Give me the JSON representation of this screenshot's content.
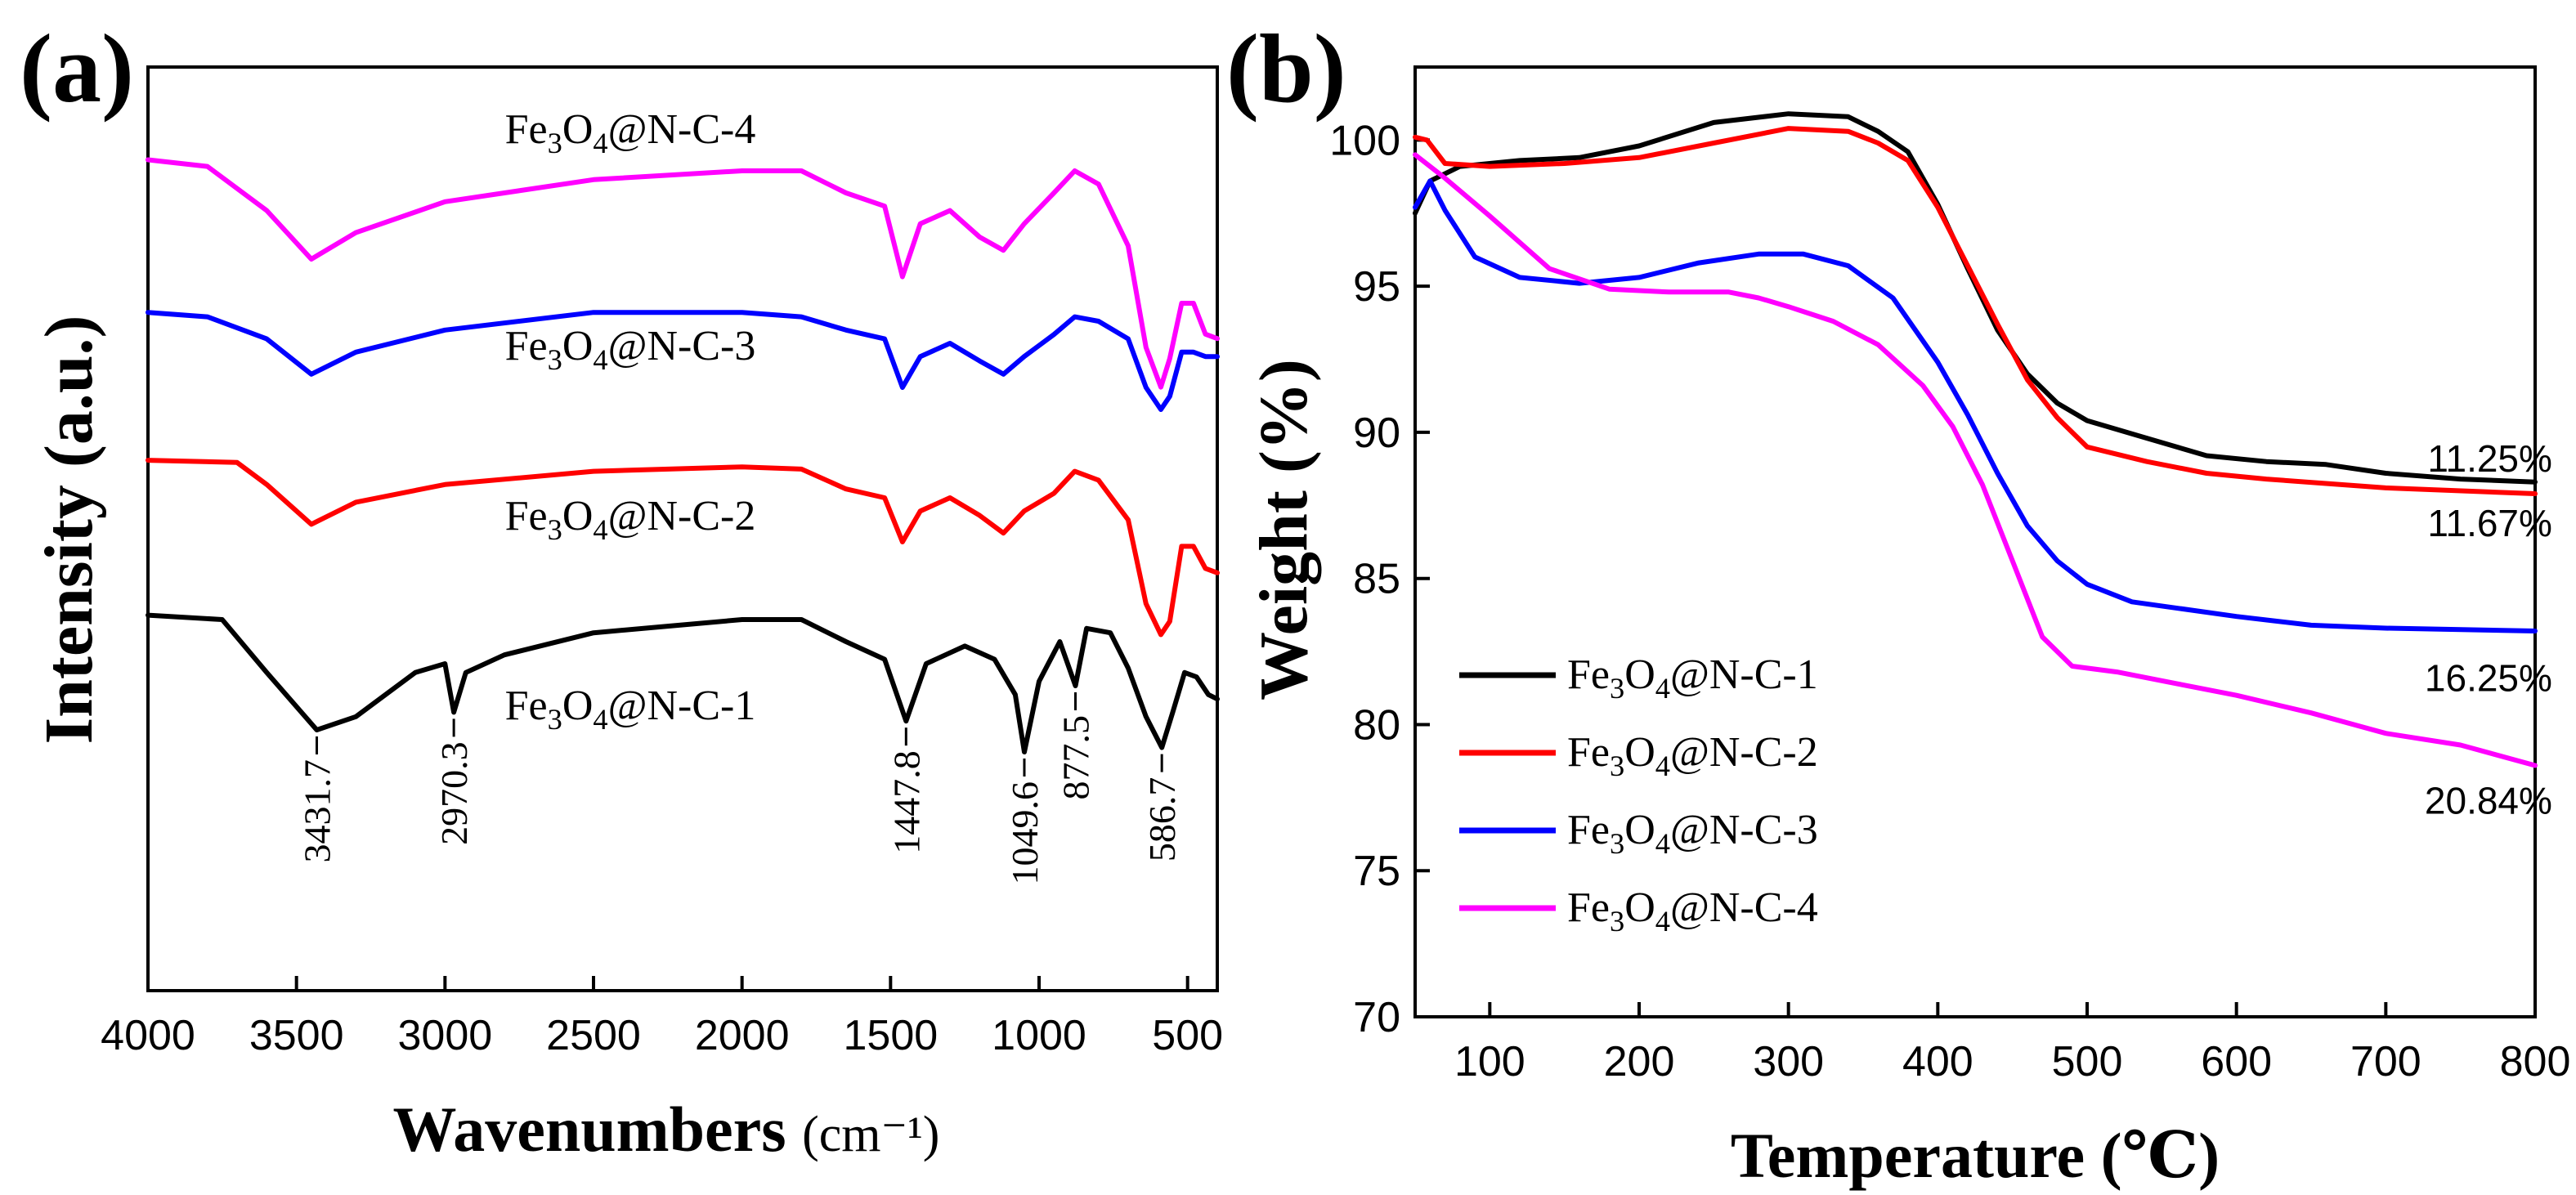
{
  "chart_data": [
    {
      "panel_label": "(a)",
      "type": "line",
      "title": "",
      "xlabel": "Wavenumbers",
      "xlabel_unit": "(cm⁻¹)",
      "ylabel": "Intensity (a.u.)",
      "xlim": [
        4000,
        400
      ],
      "xticks": [
        4000,
        3500,
        3000,
        2500,
        2000,
        1500,
        1000,
        500
      ],
      "offset_units": "stacked traces, arbitrary intensity",
      "series": [
        {
          "name": "Fe3O4@N-C-4",
          "label_parts": [
            "Fe",
            "3",
            "O",
            "4",
            "@N-C-4"
          ],
          "color": "#ff00ff",
          "offset": 3,
          "points": [
            [
              4000,
              0.95
            ],
            [
              3800,
              0.92
            ],
            [
              3600,
              0.72
            ],
            [
              3450,
              0.5
            ],
            [
              3300,
              0.62
            ],
            [
              3000,
              0.76
            ],
            [
              2500,
              0.86
            ],
            [
              2000,
              0.9
            ],
            [
              1800,
              0.9
            ],
            [
              1650,
              0.8
            ],
            [
              1520,
              0.74
            ],
            [
              1460,
              0.42
            ],
            [
              1400,
              0.66
            ],
            [
              1300,
              0.72
            ],
            [
              1200,
              0.6
            ],
            [
              1120,
              0.54
            ],
            [
              1050,
              0.66
            ],
            [
              950,
              0.8
            ],
            [
              880,
              0.9
            ],
            [
              800,
              0.84
            ],
            [
              700,
              0.56
            ],
            [
              640,
              0.1
            ],
            [
              590,
              -0.08
            ],
            [
              560,
              0.05
            ],
            [
              520,
              0.3
            ],
            [
              480,
              0.3
            ],
            [
              440,
              0.16
            ],
            [
              400,
              0.14
            ]
          ]
        },
        {
          "name": "Fe3O4@N-C-3",
          "label_parts": [
            "Fe",
            "3",
            "O",
            "4",
            "@N-C-3"
          ],
          "color": "#0000ff",
          "offset": 2,
          "points": [
            [
              4000,
              0.94
            ],
            [
              3800,
              0.92
            ],
            [
              3600,
              0.82
            ],
            [
              3450,
              0.66
            ],
            [
              3300,
              0.76
            ],
            [
              3000,
              0.86
            ],
            [
              2500,
              0.94
            ],
            [
              2000,
              0.94
            ],
            [
              1800,
              0.92
            ],
            [
              1650,
              0.86
            ],
            [
              1520,
              0.82
            ],
            [
              1460,
              0.6
            ],
            [
              1400,
              0.74
            ],
            [
              1300,
              0.8
            ],
            [
              1200,
              0.72
            ],
            [
              1120,
              0.66
            ],
            [
              1050,
              0.74
            ],
            [
              950,
              0.84
            ],
            [
              880,
              0.92
            ],
            [
              800,
              0.9
            ],
            [
              700,
              0.82
            ],
            [
              640,
              0.6
            ],
            [
              590,
              0.5
            ],
            [
              560,
              0.56
            ],
            [
              520,
              0.76
            ],
            [
              480,
              0.76
            ],
            [
              440,
              0.74
            ],
            [
              400,
              0.74
            ]
          ]
        },
        {
          "name": "Fe3O4@N-C-2",
          "label_parts": [
            "Fe",
            "3",
            "O",
            "4",
            "@N-C-2"
          ],
          "color": "#ff0000",
          "offset": 1,
          "points": [
            [
              4000,
              0.97
            ],
            [
              3700,
              0.96
            ],
            [
              3600,
              0.86
            ],
            [
              3450,
              0.68
            ],
            [
              3300,
              0.78
            ],
            [
              3000,
              0.86
            ],
            [
              2500,
              0.92
            ],
            [
              2000,
              0.94
            ],
            [
              1800,
              0.93
            ],
            [
              1650,
              0.84
            ],
            [
              1520,
              0.8
            ],
            [
              1460,
              0.6
            ],
            [
              1400,
              0.74
            ],
            [
              1300,
              0.8
            ],
            [
              1200,
              0.72
            ],
            [
              1120,
              0.64
            ],
            [
              1050,
              0.74
            ],
            [
              950,
              0.82
            ],
            [
              880,
              0.92
            ],
            [
              800,
              0.88
            ],
            [
              700,
              0.7
            ],
            [
              640,
              0.32
            ],
            [
              590,
              0.18
            ],
            [
              560,
              0.24
            ],
            [
              520,
              0.58
            ],
            [
              480,
              0.58
            ],
            [
              440,
              0.48
            ],
            [
              400,
              0.46
            ]
          ]
        },
        {
          "name": "Fe3O4@N-C-1",
          "label_parts": [
            "Fe",
            "3",
            "O",
            "4",
            "@N-C-1"
          ],
          "color": "#000000",
          "offset": 0,
          "points": [
            [
              4000,
              0.92
            ],
            [
              3750,
              0.9
            ],
            [
              3600,
              0.66
            ],
            [
              3431.7,
              0.4
            ],
            [
              3300,
              0.46
            ],
            [
              3100,
              0.66
            ],
            [
              3000,
              0.7
            ],
            [
              2970.3,
              0.48
            ],
            [
              2930,
              0.66
            ],
            [
              2800,
              0.74
            ],
            [
              2500,
              0.84
            ],
            [
              2000,
              0.9
            ],
            [
              1800,
              0.9
            ],
            [
              1650,
              0.8
            ],
            [
              1520,
              0.72
            ],
            [
              1447.8,
              0.44
            ],
            [
              1380,
              0.7
            ],
            [
              1250,
              0.78
            ],
            [
              1150,
              0.72
            ],
            [
              1080,
              0.56
            ],
            [
              1049.6,
              0.3
            ],
            [
              1000,
              0.62
            ],
            [
              930,
              0.8
            ],
            [
              877.5,
              0.6
            ],
            [
              840,
              0.86
            ],
            [
              760,
              0.84
            ],
            [
              700,
              0.68
            ],
            [
              640,
              0.46
            ],
            [
              586.7,
              0.32
            ],
            [
              550,
              0.48
            ],
            [
              510,
              0.66
            ],
            [
              470,
              0.64
            ],
            [
              430,
              0.56
            ],
            [
              400,
              0.54
            ]
          ]
        }
      ],
      "annotations": [
        "3431.7",
        "2970.3",
        "1447.8",
        "1049.6",
        "877.5",
        "586.7"
      ],
      "annotation_positions": [
        3431.7,
        2970.3,
        1447.8,
        1049.6,
        877.5,
        586.7
      ]
    },
    {
      "panel_label": "(b)",
      "type": "line",
      "title": "",
      "xlabel": "Temperature (℃)",
      "ylabel": "Weight (%)",
      "xlim": [
        50,
        800
      ],
      "ylim": [
        70,
        102.5
      ],
      "xticks": [
        100,
        200,
        300,
        400,
        500,
        600,
        700,
        800
      ],
      "yticks": [
        70,
        75,
        80,
        85,
        90,
        95,
        100
      ],
      "legend_position": "bottom-left",
      "series": [
        {
          "name": "Fe3O4@N-C-1",
          "label_parts": [
            "Fe",
            "3",
            "O",
            "4",
            "@N-C-1"
          ],
          "color": "#000000",
          "points": [
            [
              50,
              97.5
            ],
            [
              60,
              98.6
            ],
            [
              80,
              99.1
            ],
            [
              120,
              99.3
            ],
            [
              160,
              99.4
            ],
            [
              200,
              99.8
            ],
            [
              250,
              100.6
            ],
            [
              300,
              100.9
            ],
            [
              340,
              100.8
            ],
            [
              360,
              100.3
            ],
            [
              380,
              99.6
            ],
            [
              400,
              97.8
            ],
            [
              420,
              95.6
            ],
            [
              440,
              93.5
            ],
            [
              460,
              92.0
            ],
            [
              480,
              91.0
            ],
            [
              500,
              90.4
            ],
            [
              540,
              89.8
            ],
            [
              580,
              89.2
            ],
            [
              620,
              89.0
            ],
            [
              660,
              88.9
            ],
            [
              700,
              88.6
            ],
            [
              750,
              88.4
            ],
            [
              800,
              88.3
            ]
          ]
        },
        {
          "name": "Fe3O4@N-C-2",
          "label_parts": [
            "Fe",
            "3",
            "O",
            "4",
            "@N-C-2"
          ],
          "color": "#ff0000",
          "points": [
            [
              50,
              100.1
            ],
            [
              58,
              100.0
            ],
            [
              70,
              99.2
            ],
            [
              100,
              99.1
            ],
            [
              150,
              99.2
            ],
            [
              200,
              99.4
            ],
            [
              250,
              99.9
            ],
            [
              300,
              100.4
            ],
            [
              340,
              100.3
            ],
            [
              360,
              99.9
            ],
            [
              380,
              99.3
            ],
            [
              400,
              97.7
            ],
            [
              420,
              95.7
            ],
            [
              440,
              93.7
            ],
            [
              460,
              91.8
            ],
            [
              480,
              90.5
            ],
            [
              500,
              89.5
            ],
            [
              540,
              89.0
            ],
            [
              580,
              88.6
            ],
            [
              620,
              88.4
            ],
            [
              700,
              88.1
            ],
            [
              800,
              87.9
            ]
          ]
        },
        {
          "name": "Fe3O4@N-C-3",
          "label_parts": [
            "Fe",
            "3",
            "O",
            "4",
            "@N-C-3"
          ],
          "color": "#0000ff",
          "points": [
            [
              50,
              97.7
            ],
            [
              60,
              98.6
            ],
            [
              70,
              97.6
            ],
            [
              90,
              96.0
            ],
            [
              120,
              95.3
            ],
            [
              160,
              95.1
            ],
            [
              200,
              95.3
            ],
            [
              240,
              95.8
            ],
            [
              280,
              96.1
            ],
            [
              310,
              96.1
            ],
            [
              340,
              95.7
            ],
            [
              370,
              94.6
            ],
            [
              400,
              92.4
            ],
            [
              420,
              90.6
            ],
            [
              440,
              88.6
            ],
            [
              460,
              86.8
            ],
            [
              480,
              85.6
            ],
            [
              500,
              84.8
            ],
            [
              530,
              84.2
            ],
            [
              600,
              83.7
            ],
            [
              650,
              83.4
            ],
            [
              700,
              83.3
            ],
            [
              800,
              83.2
            ]
          ]
        },
        {
          "name": "Fe3O4@N-C-4",
          "label_parts": [
            "Fe",
            "3",
            "O",
            "4",
            "@N-C-4"
          ],
          "color": "#ff00ff",
          "points": [
            [
              50,
              99.5
            ],
            [
              70,
              98.7
            ],
            [
              100,
              97.4
            ],
            [
              140,
              95.6
            ],
            [
              180,
              94.9
            ],
            [
              220,
              94.8
            ],
            [
              260,
              94.8
            ],
            [
              280,
              94.6
            ],
            [
              300,
              94.3
            ],
            [
              330,
              93.8
            ],
            [
              360,
              93.0
            ],
            [
              390,
              91.6
            ],
            [
              410,
              90.2
            ],
            [
              430,
              88.2
            ],
            [
              450,
              85.6
            ],
            [
              470,
              83.0
            ],
            [
              490,
              82.0
            ],
            [
              520,
              81.8
            ],
            [
              560,
              81.4
            ],
            [
              600,
              81.0
            ],
            [
              650,
              80.4
            ],
            [
              700,
              79.7
            ],
            [
              750,
              79.3
            ],
            [
              800,
              78.6
            ]
          ]
        }
      ],
      "annotations": [
        {
          "text": "11.25%",
          "x": 760,
          "y": 89.1
        },
        {
          "text": "11.67%",
          "x": 760,
          "y": 86.9
        },
        {
          "text": "16.25%",
          "x": 760,
          "y": 81.6
        },
        {
          "text": "20.84%",
          "x": 760,
          "y": 77.4
        }
      ]
    }
  ]
}
